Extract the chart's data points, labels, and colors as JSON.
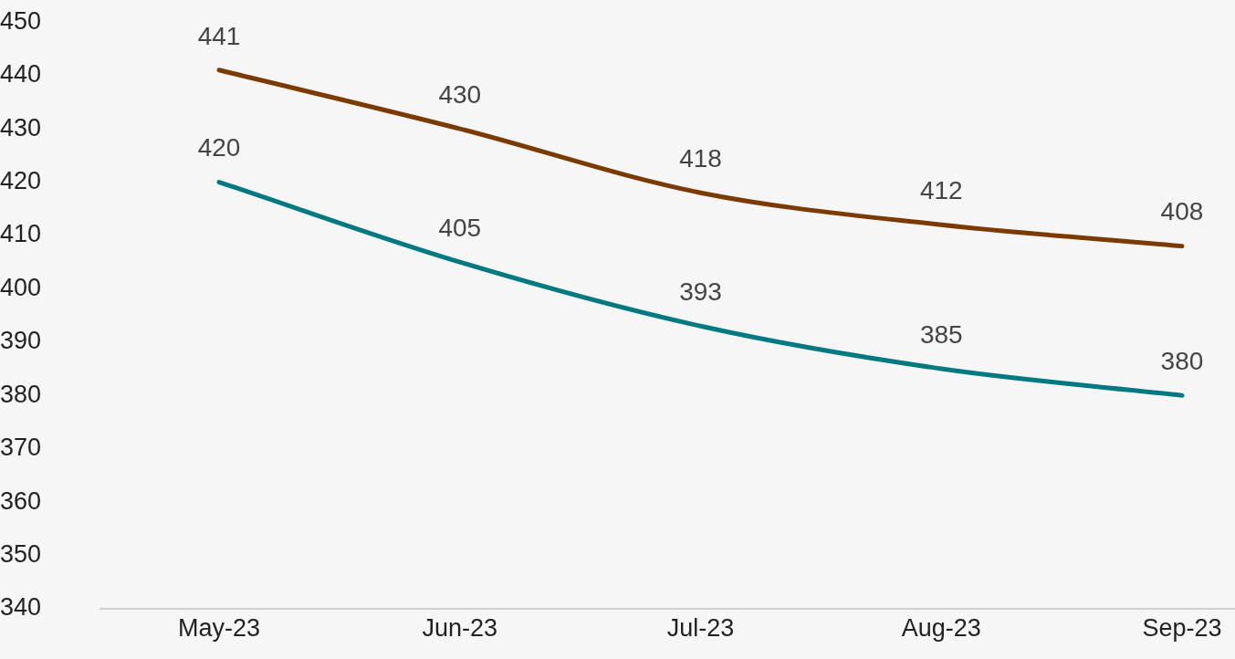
{
  "chart_data": {
    "type": "line",
    "categories": [
      "May-23",
      "Jun-23",
      "Jul-23",
      "Aug-23",
      "Sep-23"
    ],
    "series": [
      {
        "color": "#7a3a00",
        "values": [
          441,
          430,
          418,
          412,
          408
        ]
      },
      {
        "color": "#007a80",
        "values": [
          420,
          405,
          393,
          385,
          380
        ]
      }
    ],
    "ylim": [
      340,
      450
    ],
    "yticks": [
      340,
      350,
      360,
      370,
      380,
      390,
      400,
      410,
      420,
      430,
      440,
      450
    ],
    "grid": false,
    "legend": false,
    "data_labels": true,
    "marker": "none",
    "line_style": "solid"
  }
}
